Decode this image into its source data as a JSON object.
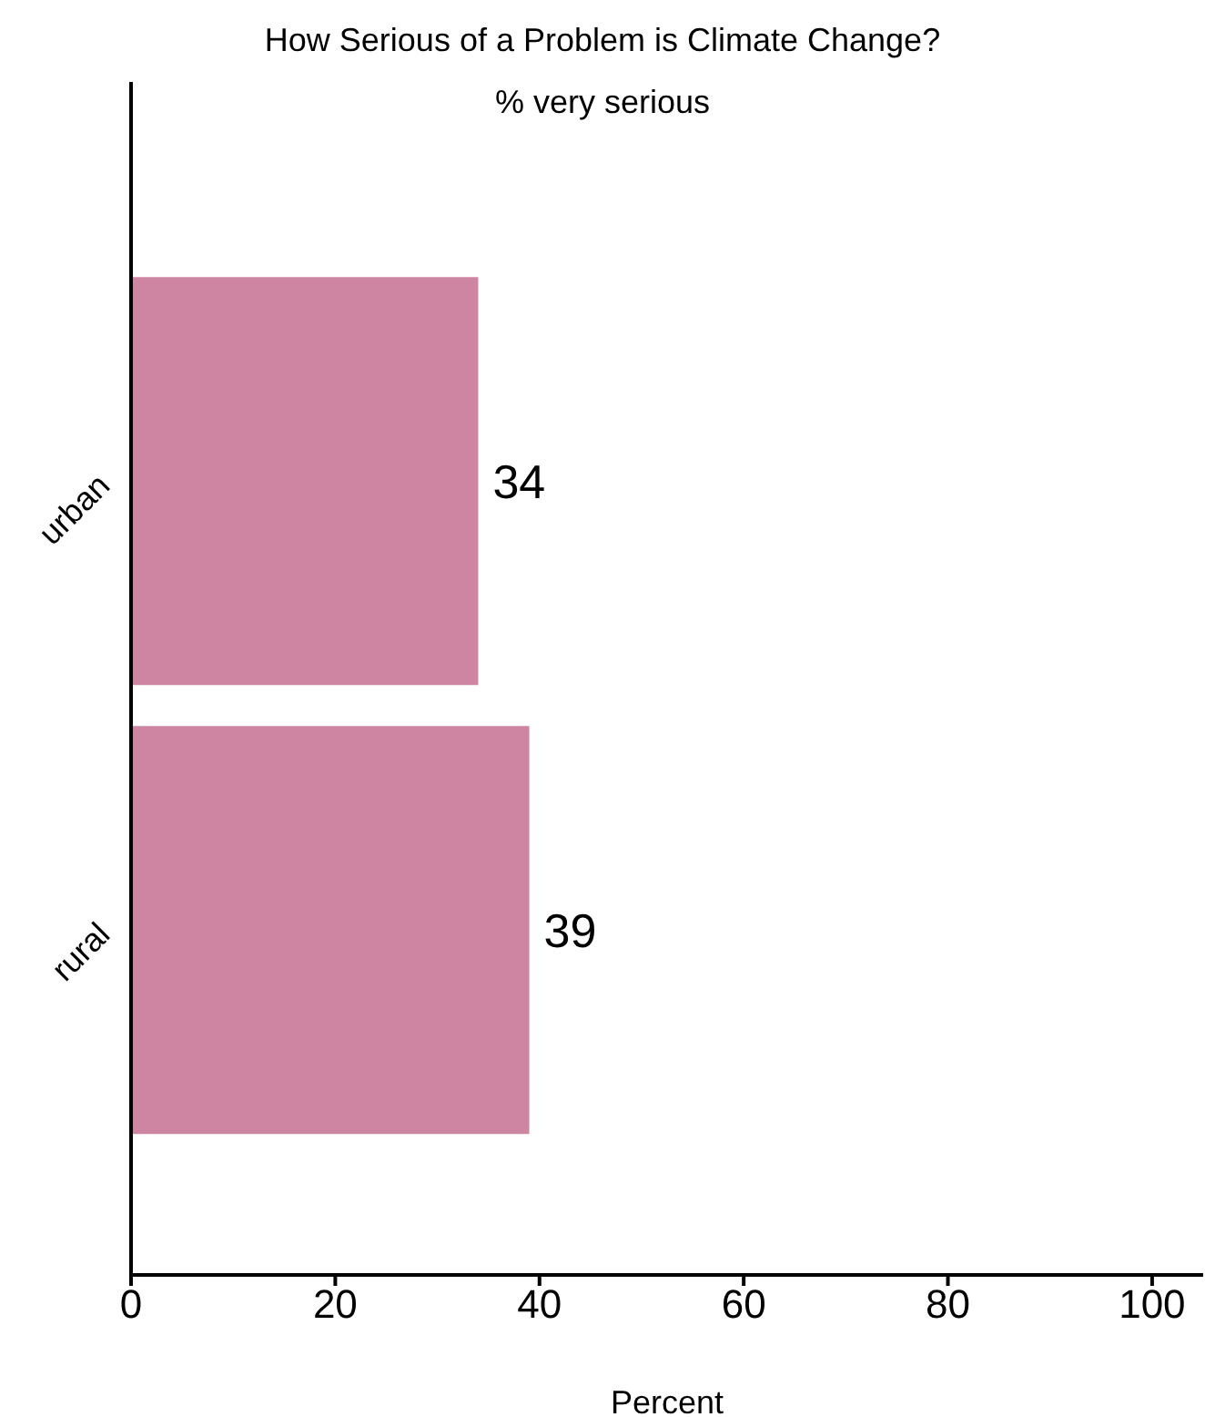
{
  "chart_data": {
    "type": "bar",
    "orientation": "horizontal",
    "title": "How Serious of a Problem is Climate Change?",
    "subtitle": "% very serious",
    "xlabel": "Percent",
    "categories": [
      "urban",
      "rural"
    ],
    "values": [
      34,
      39
    ],
    "color": "#cd85a1",
    "xlim": [
      0,
      105
    ],
    "xticks": [
      0,
      20,
      40,
      60,
      80,
      100
    ],
    "data_labels": true,
    "grid": false,
    "legend": false
  }
}
